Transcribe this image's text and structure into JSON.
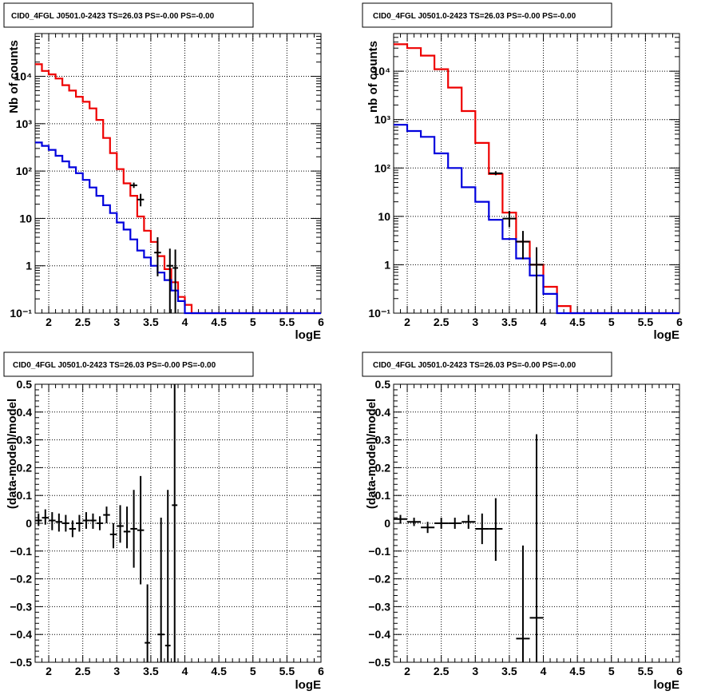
{
  "colors": {
    "data": "#000000",
    "model_total": "#ee0000",
    "model_source": "#0000dd"
  },
  "chart_data": [
    {
      "id": "tl",
      "type": "line",
      "title": "CID0_4FGL J0501.0-2423 TS=26.03 PS=-0.00 PS=-0.00",
      "xlabel": "logE",
      "ylabel": "Nb of counts",
      "yscale": "log",
      "xlim": [
        1.8,
        6.0
      ],
      "ylim": [
        0.1,
        80000
      ],
      "xticks": [
        2,
        2.5,
        3,
        3.5,
        4,
        4.5,
        5,
        5.5,
        6
      ],
      "xtick_labels": [
        "2",
        "2.5",
        "3",
        "3.5",
        "4",
        "4.5",
        "5",
        "5.5",
        "6"
      ],
      "yticks": [
        0.1,
        1,
        10,
        100,
        1000,
        10000
      ],
      "ytick_labels": [
        "10⁻¹",
        "1",
        "10",
        "10²",
        "10³",
        "10⁴"
      ],
      "grid": true,
      "bin_edges": [
        1.8,
        1.9,
        2.0,
        2.1,
        2.2,
        2.3,
        2.4,
        2.5,
        2.6,
        2.7,
        2.8,
        2.9,
        3.0,
        3.1,
        3.2,
        3.3,
        3.4,
        3.5,
        3.6,
        3.7,
        3.8,
        3.9,
        4.0,
        4.1,
        4.2,
        4.3,
        6.0
      ],
      "series": [
        {
          "kind": "model_total",
          "values": [
            18000,
            13000,
            11000,
            9000,
            6500,
            5000,
            3700,
            2900,
            2100,
            1200,
            500,
            240,
            110,
            55,
            30,
            11,
            5.5,
            3.2,
            1.6,
            0.85,
            0.45,
            0.22,
            0.15,
            0.1,
            0.1,
            0.1
          ]
        },
        {
          "kind": "model_source",
          "values": [
            400,
            340,
            280,
            210,
            160,
            120,
            90,
            65,
            45,
            30,
            19,
            13,
            8.2,
            5.8,
            3.6,
            2.1,
            1.5,
            1.0,
            0.72,
            0.5,
            0.3,
            0.18,
            0.1,
            0.1,
            0.1,
            0.1
          ]
        }
      ],
      "points": [
        {
          "x": 3.25,
          "y": 50,
          "xerr": 0.05,
          "ylo": 44,
          "yhi": 57
        },
        {
          "x": 3.35,
          "y": 25,
          "xerr": 0.05,
          "ylo": 18,
          "yhi": 33
        },
        {
          "x": 3.6,
          "y": 1.9,
          "xerr": 0.05,
          "ylo": 0.6,
          "yhi": 4
        },
        {
          "x": 3.78,
          "y": 1.0,
          "xerr": 0.05,
          "ylo": 0.1,
          "yhi": 2.3
        },
        {
          "x": 3.86,
          "y": 0.9,
          "xerr": 0.04,
          "ylo": 0.1,
          "yhi": 2.2
        }
      ]
    },
    {
      "id": "tr",
      "type": "line",
      "title": "CID0_4FGL J0501.0-2423 TS=26.03 PS=-0.00 PS=-0.00",
      "xlabel": "logE",
      "ylabel": "nb of counts",
      "yscale": "log",
      "xlim": [
        1.8,
        6.0
      ],
      "ylim": [
        0.1,
        60000
      ],
      "xticks": [
        2,
        2.5,
        3,
        3.5,
        4,
        4.5,
        5,
        5.5,
        6
      ],
      "xtick_labels": [
        "2",
        "2.5",
        "3",
        "3.5",
        "4",
        "4.5",
        "5",
        "5.5",
        "6"
      ],
      "yticks": [
        0.1,
        1,
        10,
        100,
        1000,
        10000
      ],
      "ytick_labels": [
        "10⁻¹",
        "1",
        "10",
        "10²",
        "10³",
        "10⁴"
      ],
      "grid": true,
      "bin_edges": [
        1.8,
        2.0,
        2.2,
        2.4,
        2.6,
        2.8,
        3.0,
        3.2,
        3.4,
        3.6,
        3.8,
        4.0,
        4.2,
        4.4,
        6.0
      ],
      "series": [
        {
          "kind": "model_total",
          "values": [
            36000,
            30000,
            21000,
            11000,
            4600,
            1500,
            330,
            75,
            12,
            3,
            1,
            0.35,
            0.14,
            0.1
          ]
        },
        {
          "kind": "model_source",
          "values": [
            780,
            580,
            440,
            200,
            100,
            40,
            20,
            8.5,
            3.4,
            1.35,
            0.6,
            0.25,
            0.1,
            0.1
          ]
        }
      ],
      "points": [
        {
          "x": 3.3,
          "y": 78,
          "xerr": 0.1,
          "ylo": 71,
          "yhi": 86
        },
        {
          "x": 3.5,
          "y": 9,
          "xerr": 0.1,
          "ylo": 6,
          "yhi": 13
        },
        {
          "x": 3.7,
          "y": 3,
          "xerr": 0.1,
          "ylo": 1.3,
          "yhi": 5
        },
        {
          "x": 3.9,
          "y": 1.0,
          "xerr": 0.1,
          "ylo": 0.1,
          "yhi": 2.3
        }
      ]
    },
    {
      "id": "bl",
      "type": "scatter",
      "title": "CID0_4FGL J0501.0-2423 TS=26.03 PS=-0.00 PS=-0.00",
      "xlabel": "logE",
      "ylabel": "(data-model)/model",
      "yscale": "linear",
      "xlim": [
        1.8,
        6.0
      ],
      "ylim": [
        -0.5,
        0.5
      ],
      "xticks": [
        2,
        2.5,
        3,
        3.5,
        4,
        4.5,
        5,
        5.5,
        6
      ],
      "xtick_labels": [
        "2",
        "2.5",
        "3",
        "3.5",
        "4",
        "4.5",
        "5",
        "5.5",
        "6"
      ],
      "yticks": [
        -0.5,
        -0.4,
        -0.3,
        -0.2,
        -0.1,
        0,
        0.1,
        0.2,
        0.3,
        0.4,
        0.5
      ],
      "ytick_labels": [
        "−0.5",
        "−0.4",
        "−0.3",
        "−0.2",
        "−0.1",
        "0",
        "0.1",
        "0.2",
        "0.3",
        "0.4",
        "0.5"
      ],
      "grid": true,
      "points": [
        {
          "x": 1.85,
          "y": 0.01,
          "xerr": 0.05,
          "ylo": -0.01,
          "yhi": 0.035
        },
        {
          "x": 1.95,
          "y": 0.02,
          "xerr": 0.05,
          "ylo": -0.005,
          "yhi": 0.05
        },
        {
          "x": 2.05,
          "y": 0.01,
          "xerr": 0.05,
          "ylo": -0.025,
          "yhi": 0.04
        },
        {
          "x": 2.15,
          "y": 0.005,
          "xerr": 0.05,
          "ylo": -0.03,
          "yhi": 0.035
        },
        {
          "x": 2.25,
          "y": 0.0,
          "xerr": 0.05,
          "ylo": -0.03,
          "yhi": 0.03
        },
        {
          "x": 2.35,
          "y": -0.02,
          "xerr": 0.05,
          "ylo": -0.05,
          "yhi": 0.01
        },
        {
          "x": 2.45,
          "y": 0.0,
          "xerr": 0.05,
          "ylo": -0.03,
          "yhi": 0.03
        },
        {
          "x": 2.55,
          "y": 0.01,
          "xerr": 0.05,
          "ylo": -0.02,
          "yhi": 0.04
        },
        {
          "x": 2.65,
          "y": 0.01,
          "xerr": 0.05,
          "ylo": -0.02,
          "yhi": 0.035
        },
        {
          "x": 2.75,
          "y": 0.0,
          "xerr": 0.05,
          "ylo": -0.025,
          "yhi": 0.025
        },
        {
          "x": 2.85,
          "y": 0.03,
          "xerr": 0.05,
          "ylo": 0.0,
          "yhi": 0.06
        },
        {
          "x": 2.95,
          "y": -0.04,
          "xerr": 0.05,
          "ylo": -0.09,
          "yhi": 0.0
        },
        {
          "x": 3.05,
          "y": -0.01,
          "xerr": 0.05,
          "ylo": -0.07,
          "yhi": 0.065
        },
        {
          "x": 3.15,
          "y": -0.03,
          "xerr": 0.05,
          "ylo": -0.09,
          "yhi": 0.06
        },
        {
          "x": 3.25,
          "y": -0.02,
          "xerr": 0.05,
          "ylo": -0.16,
          "yhi": 0.12
        },
        {
          "x": 3.35,
          "y": -0.025,
          "xerr": 0.05,
          "ylo": -0.22,
          "yhi": 0.17
        },
        {
          "x": 3.45,
          "y": -0.43,
          "xerr": 0.04,
          "ylo": -0.5,
          "yhi": -0.22
        },
        {
          "x": 3.65,
          "y": -0.4,
          "xerr": 0.05,
          "ylo": -0.5,
          "yhi": 0.02
        },
        {
          "x": 3.75,
          "y": -0.44,
          "xerr": 0.04,
          "ylo": -0.5,
          "yhi": 0.12
        },
        {
          "x": 3.85,
          "y": 0.065,
          "xerr": 0.04,
          "ylo": -0.5,
          "yhi": 0.5
        }
      ]
    },
    {
      "id": "br",
      "type": "scatter",
      "title": "CID0_4FGL J0501.0-2423 TS=26.03 PS=-0.00 PS=-0.00",
      "xlabel": "logE",
      "ylabel": "(data-model)/model",
      "yscale": "linear",
      "xlim": [
        1.8,
        6.0
      ],
      "ylim": [
        -0.5,
        0.5
      ],
      "xticks": [
        2,
        2.5,
        3,
        3.5,
        4,
        4.5,
        5,
        5.5,
        6
      ],
      "xtick_labels": [
        "2",
        "2.5",
        "3",
        "3.5",
        "4",
        "4.5",
        "5",
        "5.5",
        "6"
      ],
      "yticks": [
        -0.5,
        -0.4,
        -0.3,
        -0.2,
        -0.1,
        0,
        0.1,
        0.2,
        0.3,
        0.4,
        0.5
      ],
      "ytick_labels": [
        "−0.5",
        "−0.4",
        "−0.3",
        "−0.2",
        "−0.1",
        "0",
        "0.1",
        "0.2",
        "0.3",
        "0.4",
        "0.5"
      ],
      "grid": true,
      "points": [
        {
          "x": 1.9,
          "y": 0.015,
          "xerr": 0.1,
          "ylo": 0.0,
          "yhi": 0.03
        },
        {
          "x": 2.1,
          "y": 0.005,
          "xerr": 0.1,
          "ylo": -0.01,
          "yhi": 0.02
        },
        {
          "x": 2.3,
          "y": -0.015,
          "xerr": 0.1,
          "ylo": -0.035,
          "yhi": 0.005
        },
        {
          "x": 2.5,
          "y": 0.0,
          "xerr": 0.1,
          "ylo": -0.02,
          "yhi": 0.02
        },
        {
          "x": 2.7,
          "y": 0.0,
          "xerr": 0.1,
          "ylo": -0.02,
          "yhi": 0.02
        },
        {
          "x": 2.9,
          "y": 0.005,
          "xerr": 0.1,
          "ylo": -0.02,
          "yhi": 0.03
        },
        {
          "x": 3.1,
          "y": -0.02,
          "xerr": 0.1,
          "ylo": -0.075,
          "yhi": 0.035
        },
        {
          "x": 3.3,
          "y": -0.02,
          "xerr": 0.1,
          "ylo": -0.135,
          "yhi": 0.09
        },
        {
          "x": 3.7,
          "y": -0.415,
          "xerr": 0.1,
          "ylo": -0.5,
          "yhi": -0.08
        },
        {
          "x": 3.9,
          "y": -0.34,
          "xerr": 0.1,
          "ylo": -0.5,
          "yhi": 0.32
        }
      ]
    }
  ]
}
